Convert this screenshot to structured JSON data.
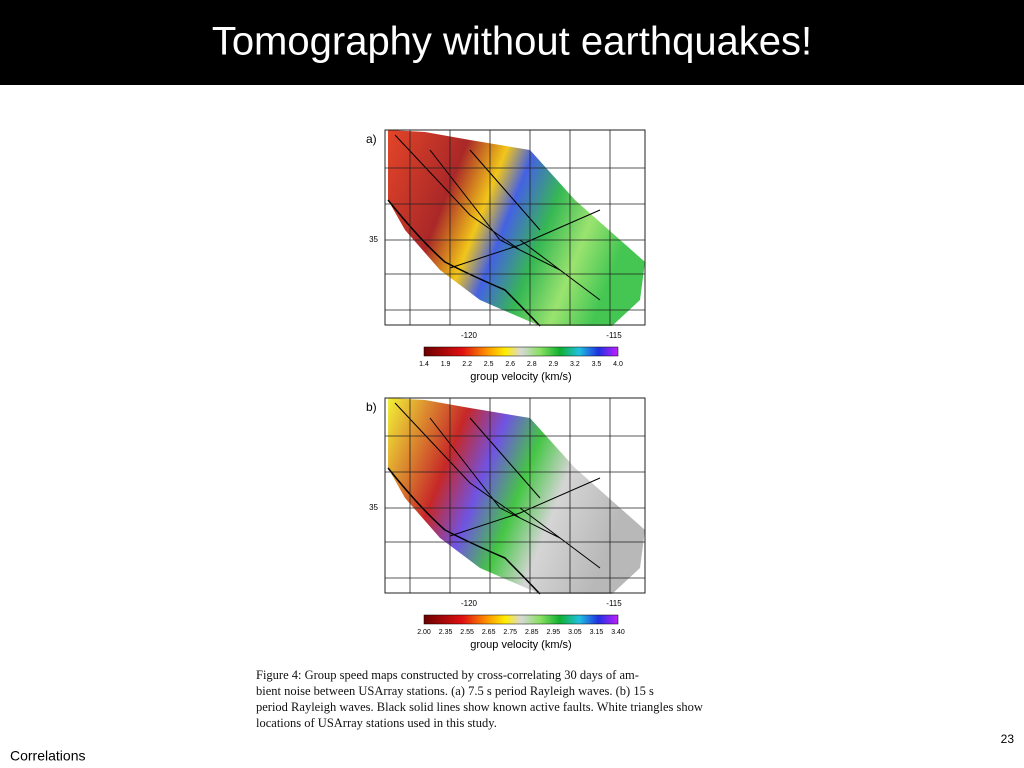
{
  "header": {
    "title": "Tomography without earthquakes!"
  },
  "panels": [
    {
      "label": "a)",
      "y_label": "35",
      "x_labels": [
        "-120",
        "-115"
      ],
      "colorbar_ticks": [
        "1.4",
        "1.9",
        "2.2",
        "2.5",
        "2.6",
        "2.8",
        "2.9",
        "3.2",
        "3.5",
        "4.0"
      ],
      "colorbar_label": "group velocity (km/s)"
    },
    {
      "label": "b)",
      "y_label": "35",
      "x_labels": [
        "-120",
        "-115"
      ],
      "colorbar_ticks": [
        "2.00",
        "2.35",
        "2.55",
        "2.65",
        "2.75",
        "2.85",
        "2.95",
        "3.05",
        "3.15",
        "3.40"
      ],
      "colorbar_label": "group velocity (km/s)"
    }
  ],
  "caption": {
    "lines": [
      "Figure 4:  Group speed maps constructed by cross-correlating 30 days of am-",
      "bient noise between USArray stations.  (a) 7.5 s period Rayleigh waves.  (b) 15 s",
      "period Rayleigh waves.  Black solid lines show known active faults.  White triangles show",
      "locations of USArray stations used in this study."
    ]
  },
  "footer": {
    "left": "Correlations",
    "page_number": "23"
  }
}
